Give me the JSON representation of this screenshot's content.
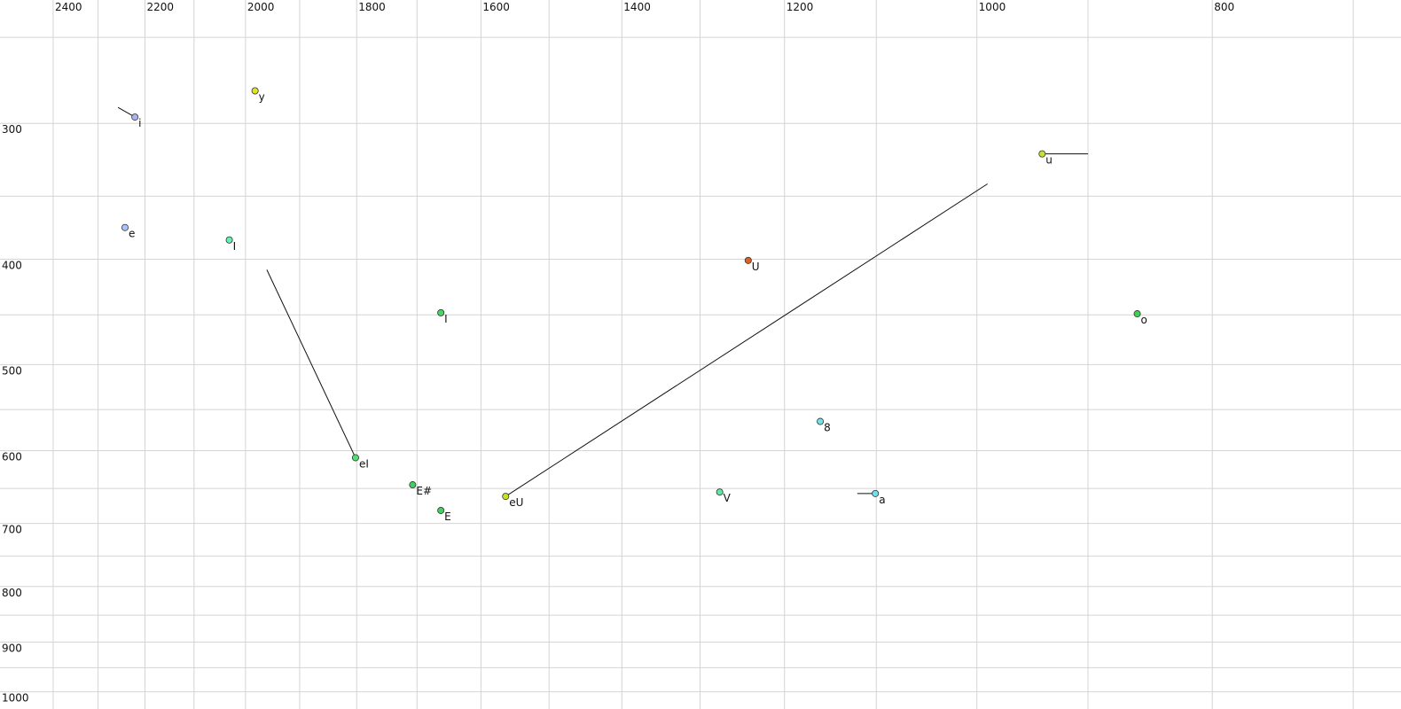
{
  "chart_data": {
    "type": "scatter",
    "x_log": true,
    "y_log": true,
    "grid": true,
    "xlim": [
      2524,
      669
    ],
    "ylim": [
      231,
      1037
    ],
    "xticks": [
      2400,
      2200,
      2000,
      1800,
      1600,
      1400,
      1200,
      1000,
      800
    ],
    "x_minor_ticks": [
      2300,
      2100,
      1900,
      1700,
      1500,
      1300,
      1100,
      900,
      700
    ],
    "yticks": [
      300,
      400,
      500,
      600,
      700,
      800,
      900,
      1000
    ],
    "y_minor_ticks": [
      250,
      350,
      450,
      550,
      650,
      750,
      850,
      950
    ],
    "points": [
      {
        "label": "i",
        "x": 2221,
        "y": 296,
        "color": "#a8b4f0",
        "from": {
          "x": 2257,
          "y": 290
        }
      },
      {
        "label": "y",
        "x": 1982,
        "y": 280,
        "color": "#e4e41c"
      },
      {
        "label": "e",
        "x": 2242,
        "y": 374,
        "color": "#a8c4f8"
      },
      {
        "label": "I",
        "x": 2031,
        "y": 384,
        "color": "#66f0b4"
      },
      {
        "label": "eI",
        "x": 1802,
        "y": 609,
        "color": "#50e070",
        "from": {
          "x": 1960,
          "y": 409
        }
      },
      {
        "label": "E#",
        "x": 1707,
        "y": 645,
        "color": "#40d060"
      },
      {
        "label": "E",
        "x": 1662,
        "y": 681,
        "color": "#40d060"
      },
      {
        "label": "I",
        "x": 1662,
        "y": 448,
        "color": "#44d864"
      },
      {
        "label": "eU",
        "x": 1563,
        "y": 661,
        "color": "#c8e020",
        "from": {
          "x": 990,
          "y": 341
        }
      },
      {
        "label": "V",
        "x": 1276,
        "y": 655,
        "color": "#60e8a0"
      },
      {
        "label": "U",
        "x": 1242,
        "y": 401,
        "color": "#e06020"
      },
      {
        "label": "8",
        "x": 1160,
        "y": 564,
        "color": "#70e4e4"
      },
      {
        "label": "a",
        "x": 1101,
        "y": 657,
        "color": "#70e0f0",
        "from": {
          "x": 1120,
          "y": 657
        }
      },
      {
        "label": "u",
        "x": 940,
        "y": 320,
        "color": "#c8e030",
        "from": {
          "x": 900,
          "y": 320
        }
      },
      {
        "label": "o",
        "x": 859,
        "y": 449,
        "color": "#40d050"
      }
    ]
  }
}
